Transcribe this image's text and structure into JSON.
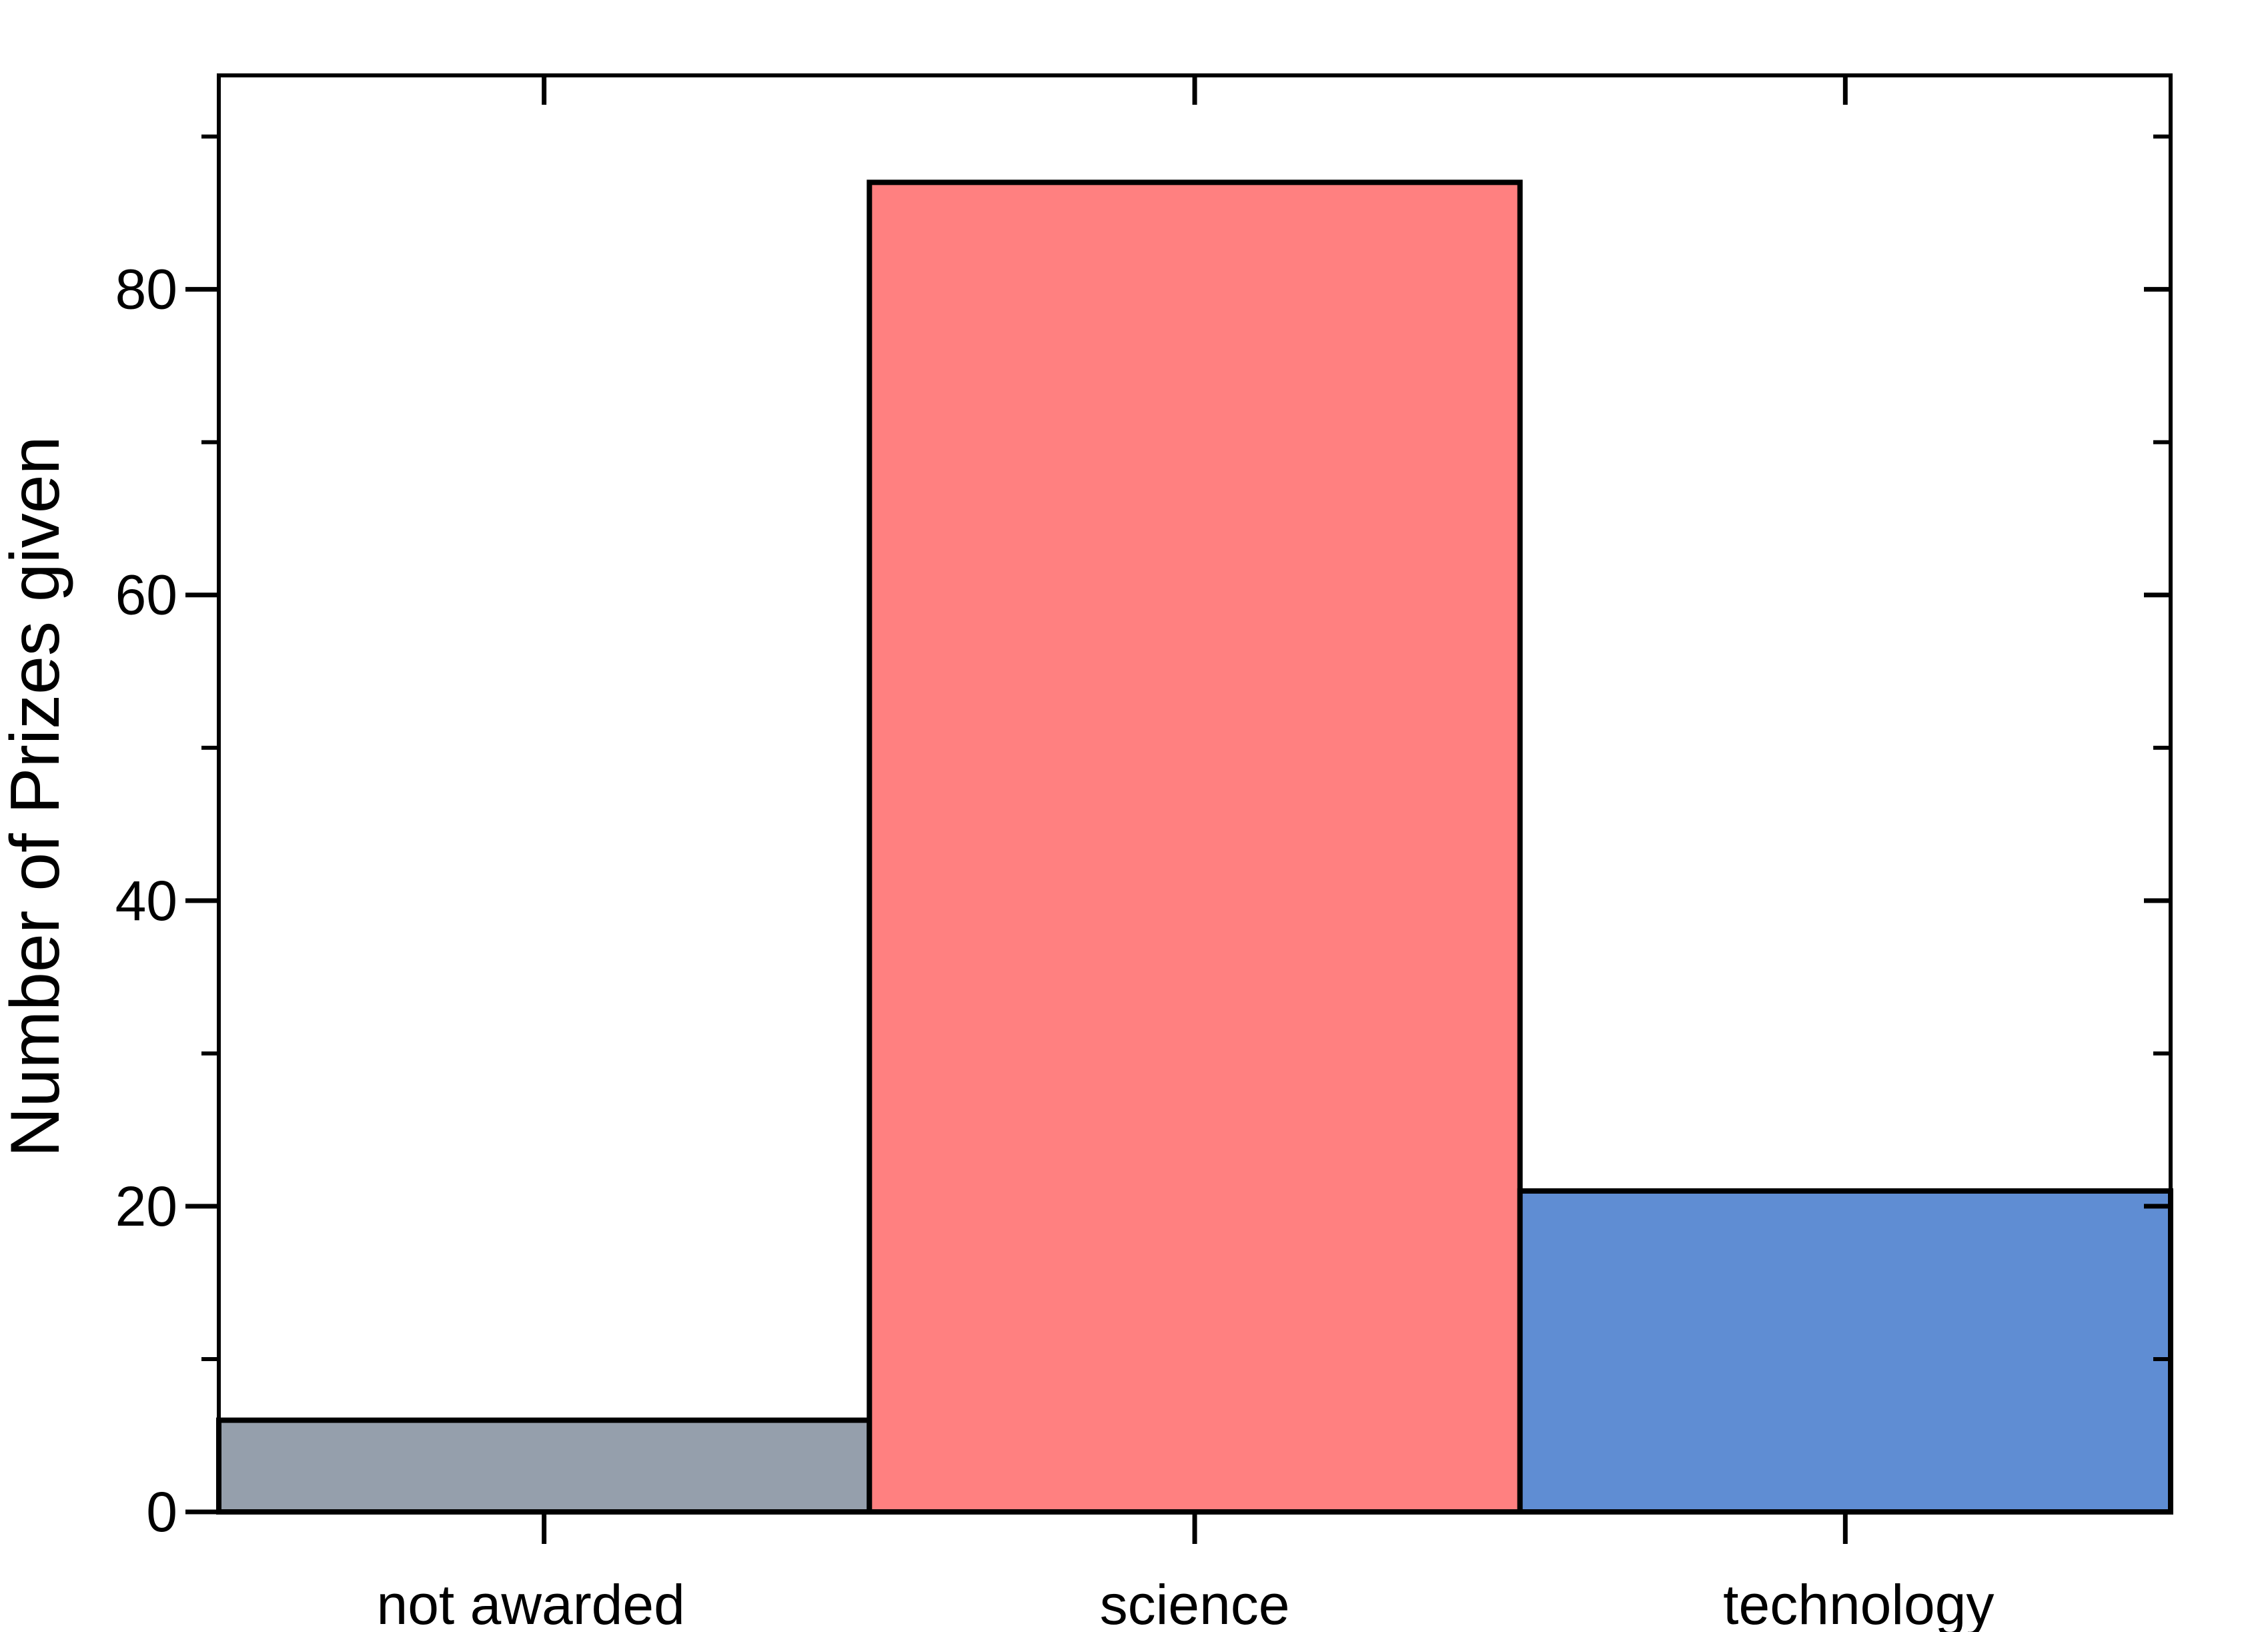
{
  "chart_data": {
    "type": "bar",
    "title": "",
    "xlabel": "",
    "ylabel": "Number of Prizes given",
    "categories": [
      "not awarded",
      "science",
      "technology"
    ],
    "values": [
      6,
      87,
      21
    ],
    "colors": [
      "#959fac",
      "#ff8080",
      "#5f8dd3"
    ],
    "ylim": [
      0,
      94
    ],
    "yticks": [
      0,
      20,
      40,
      60,
      80
    ],
    "yminor_ticks": [
      10,
      30,
      50,
      70,
      90
    ],
    "grid": false,
    "legend": "none"
  }
}
